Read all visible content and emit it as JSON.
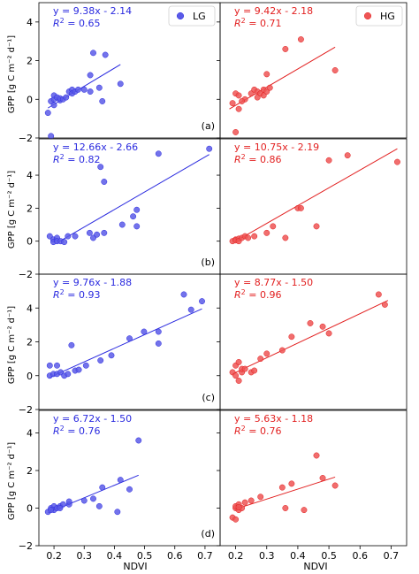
{
  "figure": {
    "ylabel": "GPP [g C m⁻² d⁻¹]",
    "xlabel": "NDVI",
    "legend": {
      "left": "LG",
      "right": "HG"
    },
    "colors": {
      "left": "#2a2adf",
      "right": "#e21f1f",
      "left_fill": "#5a5ae8",
      "right_fill": "#ee5555"
    }
  },
  "chart_data": [
    {
      "type": "scatter",
      "row": 0,
      "label": "(a)",
      "ylim": [
        -2,
        5
      ],
      "yticks": [
        -2,
        0,
        2,
        4
      ],
      "left": {
        "name": "LG",
        "eq": "y  =  9.38x - 2.14",
        "r2": "= 0.65",
        "xlim": [
          0.15,
          0.75
        ],
        "fit": [
          [
            0.18,
            -0.45
          ],
          [
            0.42,
            1.8
          ]
        ],
        "x": [
          0.18,
          0.19,
          0.2,
          0.2,
          0.21,
          0.22,
          0.22,
          0.23,
          0.24,
          0.25,
          0.26,
          0.26,
          0.27,
          0.28,
          0.3,
          0.32,
          0.32,
          0.33,
          0.35,
          0.36,
          0.37,
          0.42,
          0.19,
          0.2
        ],
        "y": [
          -0.7,
          -0.1,
          0.0,
          0.2,
          0.1,
          -0.05,
          0.05,
          0.0,
          0.1,
          0.4,
          0.5,
          0.3,
          0.4,
          0.5,
          0.5,
          0.4,
          1.25,
          2.4,
          0.6,
          -0.1,
          2.3,
          0.8,
          -1.9,
          -0.3
        ]
      },
      "right": {
        "name": "HG",
        "eq": "y  =  9.42x - 2.18",
        "r2": "= 0.71",
        "xlim": [
          0.15,
          0.75
        ],
        "fit": [
          [
            0.18,
            -0.5
          ],
          [
            0.52,
            2.7
          ]
        ],
        "x": [
          0.19,
          0.2,
          0.21,
          0.21,
          0.23,
          0.25,
          0.26,
          0.27,
          0.27,
          0.28,
          0.29,
          0.29,
          0.3,
          0.3,
          0.31,
          0.36,
          0.41,
          0.52,
          0.2,
          0.22
        ],
        "y": [
          -0.2,
          0.3,
          0.2,
          -0.5,
          0.0,
          0.3,
          0.5,
          0.4,
          0.1,
          0.3,
          0.2,
          0.5,
          0.4,
          1.3,
          0.6,
          2.6,
          3.1,
          1.5,
          -1.7,
          -0.1
        ]
      }
    },
    {
      "type": "scatter",
      "row": 1,
      "label": "(b)",
      "ylim": [
        -2,
        6.2
      ],
      "yticks": [
        -2,
        0,
        2,
        4
      ],
      "left": {
        "name": "LG",
        "eq": "y  =  12.66x - 2.66",
        "r2": "= 0.82",
        "xlim": [
          0.15,
          0.65
        ],
        "fit": [
          [
            0.2,
            -0.1
          ],
          [
            0.62,
            5.25
          ]
        ],
        "x": [
          0.18,
          0.19,
          0.19,
          0.2,
          0.2,
          0.21,
          0.22,
          0.23,
          0.25,
          0.29,
          0.3,
          0.31,
          0.32,
          0.33,
          0.33,
          0.38,
          0.41,
          0.42,
          0.42,
          0.48,
          0.62
        ],
        "y": [
          0.3,
          0.1,
          -0.05,
          0.2,
          0.0,
          0.0,
          -0.05,
          0.3,
          0.3,
          0.5,
          0.2,
          0.4,
          4.5,
          3.6,
          0.5,
          1.0,
          1.5,
          1.9,
          0.9,
          5.3,
          5.6
        ]
      },
      "right": {
        "name": "HG",
        "eq": "y  =  10.75x - 2.19",
        "r2": "= 0.86",
        "xlim": [
          0.15,
          0.75
        ],
        "fit": [
          [
            0.2,
            0.0
          ],
          [
            0.72,
            5.6
          ]
        ],
        "x": [
          0.19,
          0.2,
          0.2,
          0.21,
          0.21,
          0.22,
          0.23,
          0.24,
          0.26,
          0.3,
          0.32,
          0.36,
          0.4,
          0.41,
          0.46,
          0.5,
          0.56,
          0.72
        ],
        "y": [
          0.0,
          0.1,
          0.05,
          0.15,
          0.0,
          0.2,
          0.3,
          0.2,
          0.3,
          0.5,
          0.9,
          0.2,
          2.0,
          2.0,
          0.9,
          4.9,
          5.2,
          4.8
        ]
      }
    },
    {
      "type": "scatter",
      "row": 2,
      "label": "(c)",
      "ylim": [
        -2,
        6
      ],
      "yticks": [
        -2,
        0,
        2,
        4
      ],
      "left": {
        "name": "LG",
        "eq": "y  =  9.76x - 1.88",
        "r2": "= 0.93",
        "xlim": [
          0.15,
          0.65
        ],
        "fit": [
          [
            0.18,
            -0.1
          ],
          [
            0.6,
            3.95
          ]
        ],
        "x": [
          0.18,
          0.18,
          0.19,
          0.2,
          0.21,
          0.22,
          0.23,
          0.24,
          0.25,
          0.26,
          0.28,
          0.32,
          0.35,
          0.4,
          0.44,
          0.48,
          0.48,
          0.55,
          0.57,
          0.6,
          0.2
        ],
        "y": [
          0.0,
          0.6,
          0.1,
          0.1,
          0.2,
          0.0,
          0.1,
          1.8,
          0.3,
          0.35,
          0.6,
          0.9,
          1.2,
          2.2,
          2.6,
          1.9,
          2.6,
          4.8,
          3.9,
          4.4,
          0.6
        ]
      },
      "right": {
        "name": "HG",
        "eq": "y  =  8.77x - 1.50",
        "r2": "= 0.96",
        "xlim": [
          0.15,
          0.75
        ],
        "fit": [
          [
            0.19,
            0.1
          ],
          [
            0.69,
            4.45
          ]
        ],
        "x": [
          0.19,
          0.2,
          0.2,
          0.21,
          0.22,
          0.22,
          0.23,
          0.25,
          0.26,
          0.28,
          0.3,
          0.35,
          0.38,
          0.44,
          0.48,
          0.5,
          0.66,
          0.68,
          0.21
        ],
        "y": [
          0.2,
          0.6,
          0.0,
          -0.3,
          0.2,
          0.4,
          0.4,
          0.2,
          0.3,
          1.0,
          1.3,
          1.5,
          2.3,
          3.1,
          2.9,
          2.5,
          4.8,
          4.2,
          0.8
        ]
      }
    },
    {
      "type": "scatter",
      "row": 3,
      "label": "(d)",
      "ylim": [
        -2,
        5.2
      ],
      "yticks": [
        -2,
        0,
        2,
        4
      ],
      "left": {
        "name": "LG",
        "eq": "y  =  6.72x - 1.50",
        "r2": "= 0.76",
        "xlim": [
          0.15,
          0.75
        ],
        "fit": [
          [
            0.18,
            -0.25
          ],
          [
            0.48,
            1.75
          ]
        ],
        "x": [
          0.18,
          0.19,
          0.2,
          0.2,
          0.21,
          0.22,
          0.23,
          0.25,
          0.25,
          0.3,
          0.33,
          0.35,
          0.36,
          0.41,
          0.42,
          0.45,
          0.48,
          0.19,
          0.22
        ],
        "y": [
          -0.2,
          0.0,
          0.1,
          -0.1,
          0.0,
          0.1,
          0.2,
          0.2,
          0.35,
          0.4,
          0.5,
          0.1,
          1.1,
          -0.2,
          1.5,
          1.0,
          3.6,
          -0.1,
          0.0
        ]
      },
      "right": {
        "name": "HG",
        "eq": "y  =  5.63x - 1.18",
        "r2": "= 0.76",
        "xlim": [
          0.15,
          0.75
        ],
        "fit": [
          [
            0.2,
            -0.05
          ],
          [
            0.52,
            1.65
          ]
        ],
        "x": [
          0.19,
          0.2,
          0.2,
          0.21,
          0.21,
          0.22,
          0.23,
          0.25,
          0.28,
          0.35,
          0.36,
          0.38,
          0.42,
          0.46,
          0.48,
          0.52,
          0.2,
          0.21
        ],
        "y": [
          -0.5,
          0.0,
          0.1,
          -0.1,
          0.2,
          0.0,
          0.3,
          0.4,
          0.6,
          1.1,
          0.0,
          1.3,
          -0.1,
          2.8,
          1.6,
          1.2,
          -0.6,
          0.05
        ]
      }
    }
  ]
}
